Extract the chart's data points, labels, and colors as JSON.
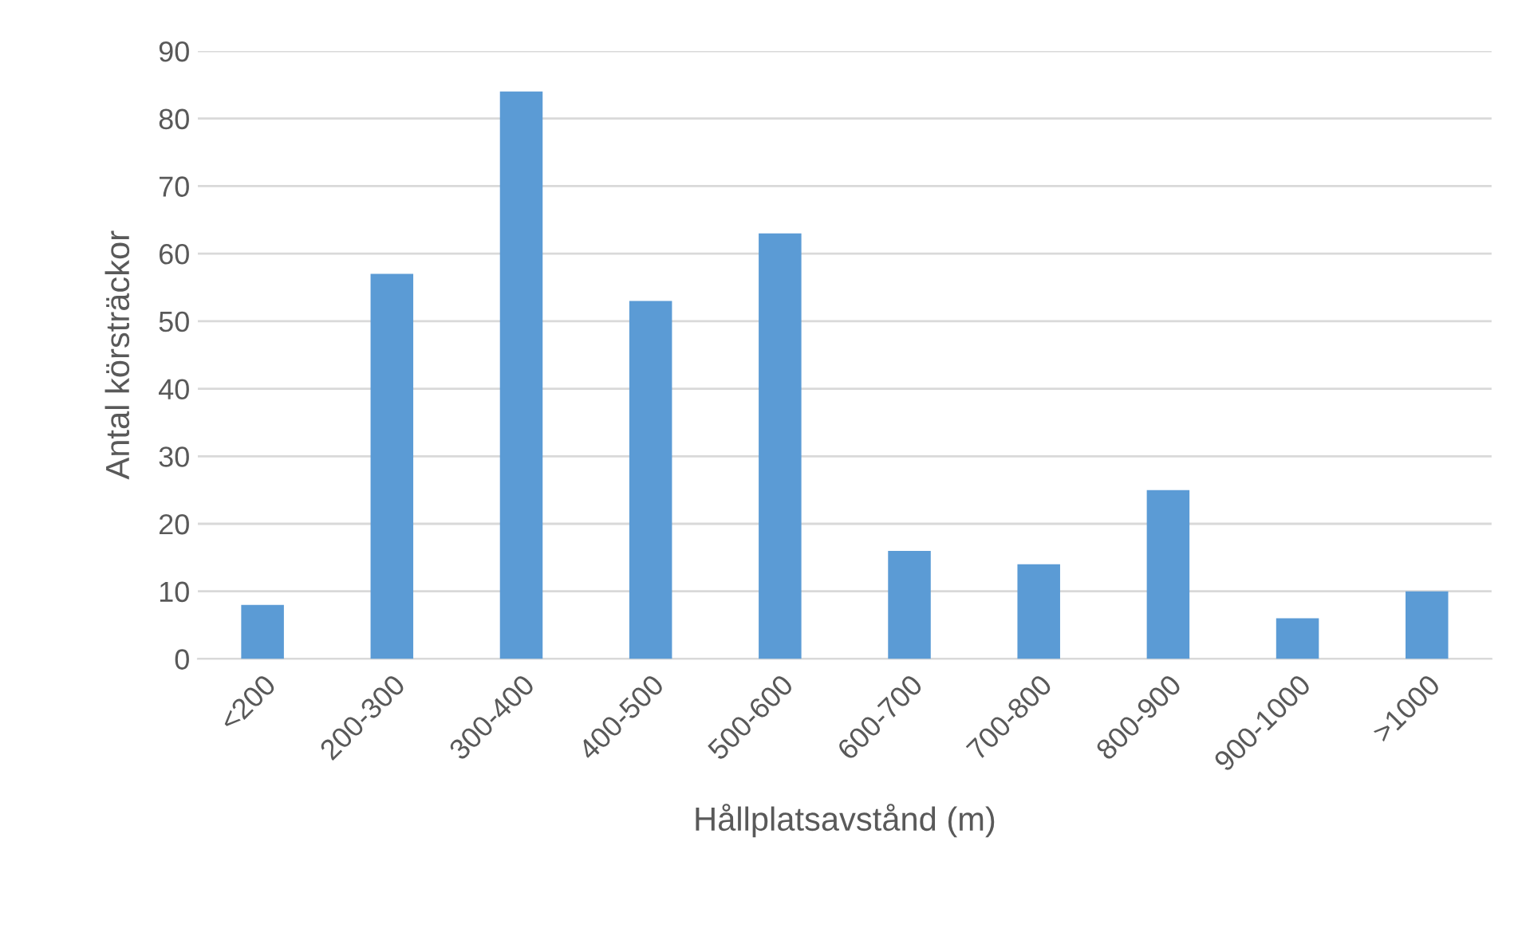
{
  "chart_data": {
    "type": "bar",
    "xlabel": "Hållplatsavstånd (m)",
    "ylabel": "Antal körsträckor",
    "categories": [
      "<200",
      "200-300",
      "300-400",
      "400-500",
      "500-600",
      "600-700",
      "700-800",
      "800-900",
      "900-1000",
      ">1000"
    ],
    "values": [
      8,
      57,
      84,
      53,
      63,
      16,
      14,
      25,
      6,
      10
    ],
    "color": "#5b9bd5",
    "ylim": [
      0,
      90
    ],
    "yticks": [
      0,
      10,
      20,
      30,
      40,
      50,
      60,
      70,
      80,
      90
    ],
    "grid": "y"
  }
}
